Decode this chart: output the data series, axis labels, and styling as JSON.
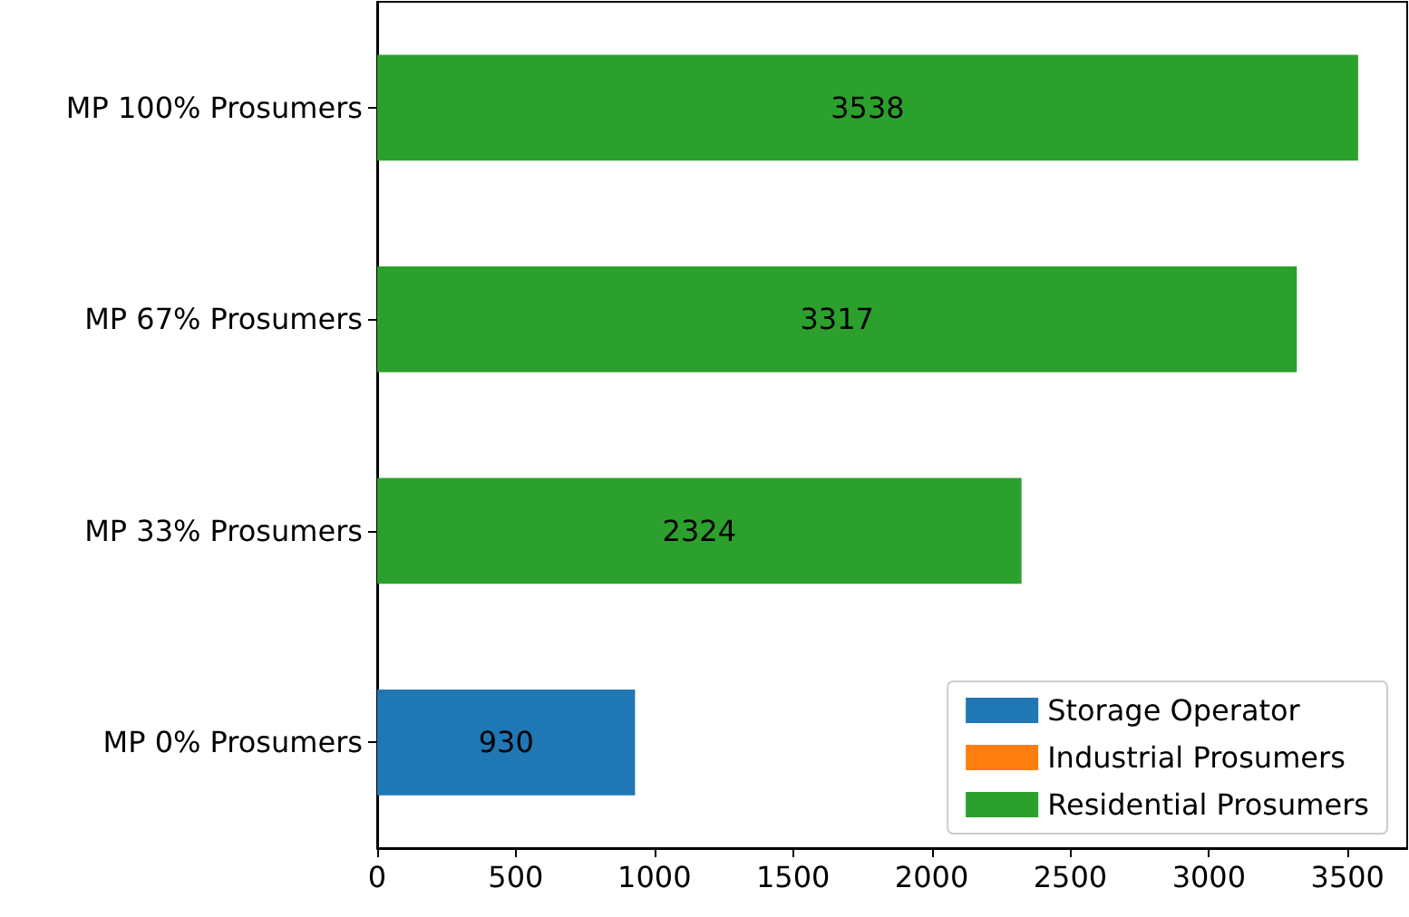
{
  "chart_data": {
    "type": "bar",
    "orientation": "horizontal",
    "stacked": true,
    "categories": [
      "MP 100% Prosumers",
      "MP 67% Prosumers",
      "MP 33% Prosumers",
      "MP 0% Prosumers"
    ],
    "series": [
      {
        "name": "Storage Operator",
        "color": "#1f77b4",
        "values": [
          0,
          0,
          0,
          930
        ],
        "value_labels": [
          null,
          null,
          null,
          "930"
        ]
      },
      {
        "name": "Industrial Prosumers",
        "color": "#ff7f0e",
        "values": [
          0,
          0,
          0,
          0
        ],
        "value_labels": [
          null,
          null,
          null,
          null
        ]
      },
      {
        "name": "Residential Prosumers",
        "color": "#2ca02c",
        "values": [
          3538,
          3317,
          2324,
          0
        ],
        "value_labels": [
          "3538",
          "3317",
          "2324",
          null
        ]
      }
    ],
    "xlim": [
      0,
      3715
    ],
    "xticks": [
      0,
      500,
      1000,
      1500,
      2000,
      2500,
      3000,
      3500
    ],
    "grid": false,
    "legend": "bottom right"
  }
}
